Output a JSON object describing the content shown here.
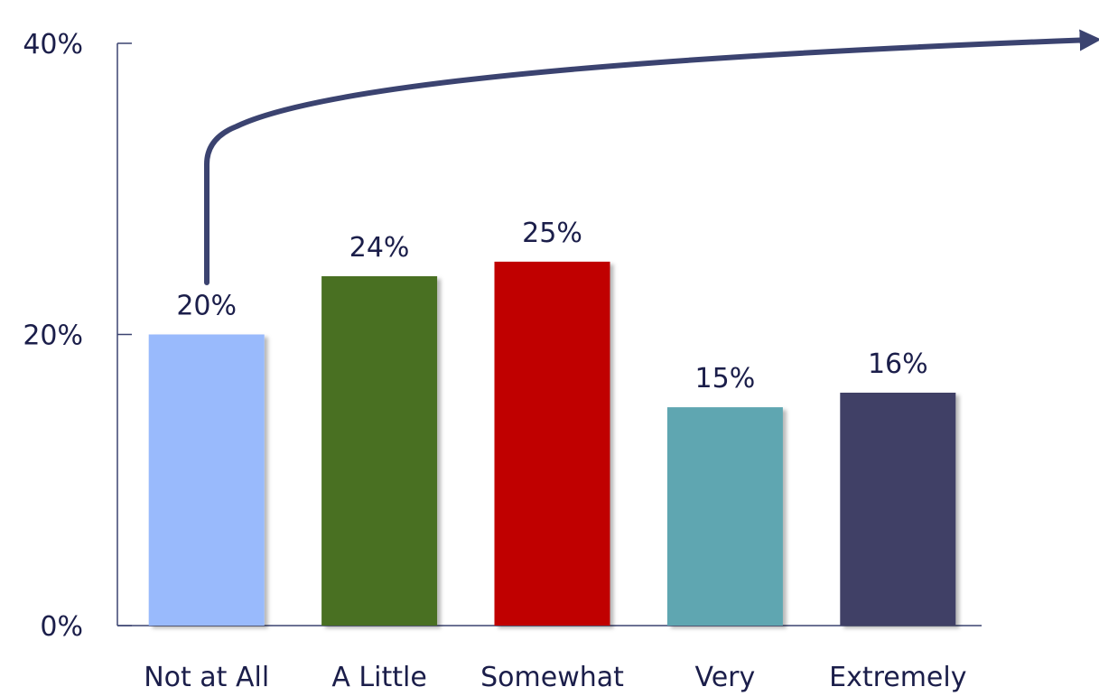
{
  "chart_data": {
    "type": "bar",
    "categories": [
      "Not at All",
      "A Little",
      "Somewhat",
      "Very",
      "Extremely"
    ],
    "values": [
      20,
      24,
      25,
      15,
      16
    ],
    "value_labels": [
      "20%",
      "24%",
      "25%",
      "15%",
      "16%"
    ],
    "colors": [
      "#99bafc",
      "#4a7021",
      "#c00000",
      "#5fa6b1",
      "#3f4066"
    ],
    "ylim": [
      0,
      40
    ],
    "yticks": [
      0,
      20,
      40
    ],
    "ytick_labels": [
      "0%",
      "20%",
      "40%"
    ],
    "grid": false,
    "legend": "none",
    "axis_color": "#3b4370",
    "trend_arrow_color": "#3b4370"
  }
}
